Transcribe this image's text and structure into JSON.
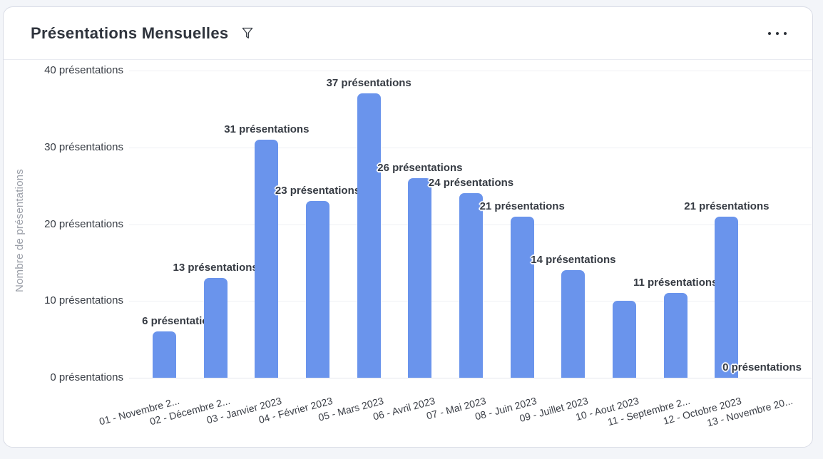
{
  "header": {
    "title": "Présentations Mensuelles"
  },
  "chart_data": {
    "type": "bar",
    "title": "Présentations Mensuelles",
    "xlabel": "",
    "ylabel": "Nombre de présentations",
    "ylim": [
      0,
      40
    ],
    "yticks": [
      0,
      10,
      20,
      30,
      40
    ],
    "ytick_labels": [
      "0 présentations",
      "10 présentations",
      "20 présentations",
      "30 présentations",
      "40 présentations"
    ],
    "grid": true,
    "legend": "none",
    "bar_color": "#6A94EC",
    "categories": [
      "01 - Novembre 2...",
      "02 - Décembre 2...",
      "03 - Janvier 2023",
      "04 - Février 2023",
      "05 - Mars 2023",
      "06 - Avril 2023",
      "07 - Mai 2023",
      "08 - Juin 2023",
      "09 - Juillet 2023",
      "10 - Aout 2023",
      "11 - Septembre 2...",
      "12 - Octobre 2023",
      "13 - Novembre 20..."
    ],
    "values": [
      6,
      13,
      31,
      23,
      37,
      26,
      24,
      21,
      14,
      10,
      11,
      21,
      0
    ],
    "data_labels": [
      "6 présentations",
      "13 présentations",
      "31 présentations",
      "23 présentations",
      "37 présentations",
      "26 présentations",
      "24 présentations",
      "21 présentations",
      "14 présentations",
      "",
      "11 présentations",
      "21 présentations",
      "0 présentations"
    ]
  },
  "colors": {
    "bar": "#6A94EC",
    "card_background": "#ffffff",
    "page_background": "#f3f5f9",
    "card_border": "#d9dce6",
    "title_text": "#2f343d",
    "axis_text": "#383d45",
    "axis_title_text": "#9b9fa8",
    "data_label_text": "#363b43",
    "gridline": "#eff0f4"
  }
}
